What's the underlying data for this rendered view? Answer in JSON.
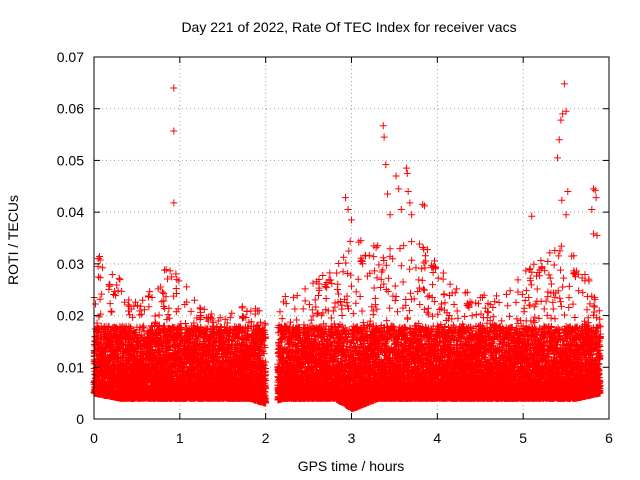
{
  "chart_data": {
    "type": "scatter",
    "title": "Day 221 of 2022, Rate Of TEC Index for receiver vacs",
    "xlabel": "GPS time / hours",
    "ylabel": "ROTI / TECUs",
    "xlim": [
      0,
      6
    ],
    "ylim": [
      0,
      0.07
    ],
    "grid": true,
    "marker": "+",
    "color": "#ff0000",
    "x_ticks": [
      "0",
      "1",
      "2",
      "3",
      "4",
      "5",
      "6"
    ],
    "y_ticks": [
      "0",
      "0.01",
      "0.02",
      "0.03",
      "0.04",
      "0.05",
      "0.06",
      "0.07"
    ],
    "x_tick_values": [
      0,
      1,
      2,
      3,
      4,
      5,
      6
    ],
    "y_tick_values": [
      0,
      0.01,
      0.02,
      0.03,
      0.04,
      0.05,
      0.06,
      0.07
    ],
    "sampling": {
      "x_start": 0.0,
      "x_end": 5.88,
      "x_gap": [
        2.0,
        2.13
      ],
      "points_per_bin": 55,
      "bin_width": 0.02
    },
    "envelope": [
      {
        "x": 0.0,
        "low": 0.005,
        "high": 0.033
      },
      {
        "x": 0.3,
        "low": 0.004,
        "high": 0.027
      },
      {
        "x": 0.6,
        "low": 0.004,
        "high": 0.024
      },
      {
        "x": 0.9,
        "low": 0.004,
        "high": 0.031
      },
      {
        "x": 1.2,
        "low": 0.004,
        "high": 0.022
      },
      {
        "x": 1.5,
        "low": 0.004,
        "high": 0.02
      },
      {
        "x": 1.8,
        "low": 0.004,
        "high": 0.023
      },
      {
        "x": 2.0,
        "low": 0.003,
        "high": 0.02
      },
      {
        "x": 2.2,
        "low": 0.004,
        "high": 0.025
      },
      {
        "x": 2.5,
        "low": 0.004,
        "high": 0.026
      },
      {
        "x": 2.8,
        "low": 0.004,
        "high": 0.03
      },
      {
        "x": 3.0,
        "low": 0.002,
        "high": 0.036
      },
      {
        "x": 3.3,
        "low": 0.004,
        "high": 0.034
      },
      {
        "x": 3.6,
        "low": 0.004,
        "high": 0.036
      },
      {
        "x": 3.9,
        "low": 0.004,
        "high": 0.033
      },
      {
        "x": 4.2,
        "low": 0.004,
        "high": 0.026
      },
      {
        "x": 4.5,
        "low": 0.004,
        "high": 0.024
      },
      {
        "x": 4.8,
        "low": 0.004,
        "high": 0.026
      },
      {
        "x": 5.1,
        "low": 0.004,
        "high": 0.03
      },
      {
        "x": 5.4,
        "low": 0.004,
        "high": 0.035
      },
      {
        "x": 5.6,
        "low": 0.004,
        "high": 0.032
      },
      {
        "x": 5.88,
        "low": 0.005,
        "high": 0.024
      }
    ],
    "outliers": [
      {
        "x": 0.93,
        "y": 0.064
      },
      {
        "x": 0.93,
        "y": 0.0557
      },
      {
        "x": 0.93,
        "y": 0.0418
      },
      {
        "x": 2.93,
        "y": 0.0428
      },
      {
        "x": 2.96,
        "y": 0.0405
      },
      {
        "x": 3.0,
        "y": 0.0385
      },
      {
        "x": 3.37,
        "y": 0.0567
      },
      {
        "x": 3.38,
        "y": 0.0545
      },
      {
        "x": 3.4,
        "y": 0.0492
      },
      {
        "x": 3.42,
        "y": 0.0435
      },
      {
        "x": 3.45,
        "y": 0.0395
      },
      {
        "x": 3.52,
        "y": 0.047
      },
      {
        "x": 3.55,
        "y": 0.0445
      },
      {
        "x": 3.58,
        "y": 0.0405
      },
      {
        "x": 3.64,
        "y": 0.0485
      },
      {
        "x": 3.65,
        "y": 0.0475
      },
      {
        "x": 3.66,
        "y": 0.044
      },
      {
        "x": 3.68,
        "y": 0.0418
      },
      {
        "x": 3.7,
        "y": 0.0395
      },
      {
        "x": 3.83,
        "y": 0.0415
      },
      {
        "x": 3.85,
        "y": 0.0412
      },
      {
        "x": 5.1,
        "y": 0.0392
      },
      {
        "x": 5.4,
        "y": 0.0505
      },
      {
        "x": 5.42,
        "y": 0.054
      },
      {
        "x": 5.44,
        "y": 0.0578
      },
      {
        "x": 5.46,
        "y": 0.059
      },
      {
        "x": 5.48,
        "y": 0.0648
      },
      {
        "x": 5.5,
        "y": 0.0595
      },
      {
        "x": 5.52,
        "y": 0.044
      },
      {
        "x": 5.45,
        "y": 0.0423
      },
      {
        "x": 5.5,
        "y": 0.0395
      },
      {
        "x": 5.82,
        "y": 0.0445
      },
      {
        "x": 5.84,
        "y": 0.0442
      },
      {
        "x": 5.85,
        "y": 0.0428
      },
      {
        "x": 5.8,
        "y": 0.0405
      },
      {
        "x": 5.82,
        "y": 0.0358
      },
      {
        "x": 5.86,
        "y": 0.0355
      }
    ]
  }
}
